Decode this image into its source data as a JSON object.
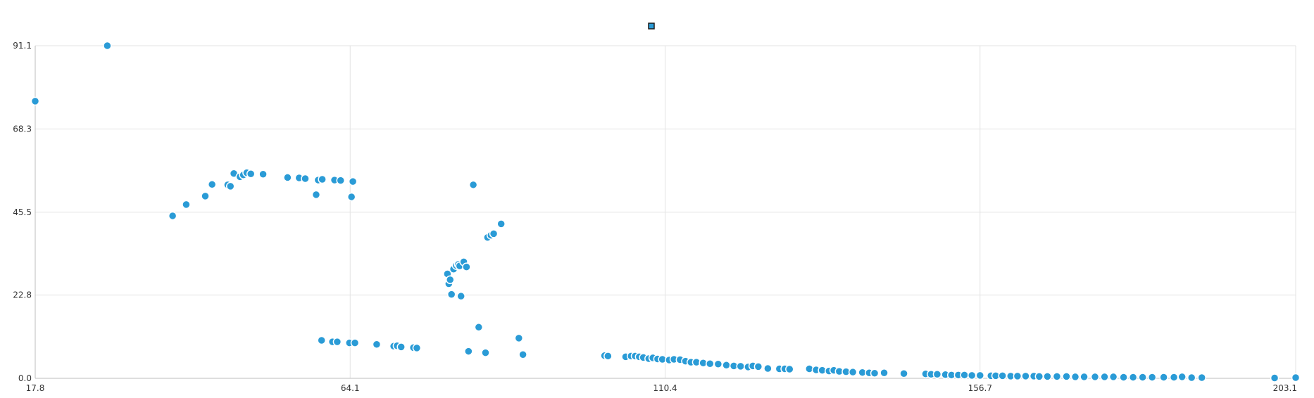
{
  "colors": {
    "series": "#2a9bd6",
    "legend_fill": "#2a9bd6",
    "legend_border": "#1a1a1a",
    "grid": "#e3e3e3",
    "tick_text": "#333333"
  },
  "legend": {
    "placement": "top-center",
    "icon": "square-marker-icon",
    "label": ""
  },
  "chart_data": {
    "type": "scatter",
    "title": "",
    "xlabel": "",
    "ylabel": "",
    "xlim": [
      17.8,
      203.1
    ],
    "ylim": [
      0.0,
      91.1
    ],
    "x_ticks": [
      "17.8",
      "64.1",
      "110.4",
      "156.7",
      "203.1"
    ],
    "y_ticks": [
      "0.0",
      "22.8",
      "45.5",
      "68.3",
      "91.1"
    ],
    "grid": true,
    "series": [
      {
        "name": "",
        "points": [
          [
            17.8,
            75.9
          ],
          [
            28.4,
            91.1
          ],
          [
            38.0,
            44.5
          ],
          [
            40.0,
            47.6
          ],
          [
            42.8,
            49.9
          ],
          [
            43.8,
            53.1
          ],
          [
            46.1,
            53.0
          ],
          [
            46.5,
            52.6
          ],
          [
            47.0,
            56.1
          ],
          [
            47.9,
            55.2
          ],
          [
            48.4,
            55.7
          ],
          [
            48.9,
            56.3
          ],
          [
            49.5,
            56.0
          ],
          [
            51.3,
            55.9
          ],
          [
            54.9,
            55.0
          ],
          [
            56.6,
            54.9
          ],
          [
            57.5,
            54.7
          ],
          [
            59.1,
            50.3
          ],
          [
            59.4,
            54.3
          ],
          [
            60.0,
            54.5
          ],
          [
            61.8,
            54.3
          ],
          [
            62.7,
            54.2
          ],
          [
            64.3,
            49.7
          ],
          [
            64.5,
            53.9
          ],
          [
            59.9,
            10.4
          ],
          [
            61.5,
            10.0
          ],
          [
            62.2,
            10.0
          ],
          [
            64.0,
            9.7
          ],
          [
            64.8,
            9.7
          ],
          [
            68.0,
            9.3
          ],
          [
            70.5,
            8.8
          ],
          [
            71.0,
            8.9
          ],
          [
            71.6,
            8.6
          ],
          [
            73.4,
            8.4
          ],
          [
            73.9,
            8.3
          ],
          [
            78.4,
            28.6
          ],
          [
            78.6,
            25.9
          ],
          [
            78.8,
            27.0
          ],
          [
            79.0,
            23.0
          ],
          [
            79.3,
            29.9
          ],
          [
            79.7,
            30.9
          ],
          [
            80.0,
            31.2
          ],
          [
            80.2,
            30.8
          ],
          [
            80.4,
            22.5
          ],
          [
            80.8,
            31.9
          ],
          [
            81.2,
            30.5
          ],
          [
            81.5,
            7.4
          ],
          [
            82.2,
            53.0
          ],
          [
            83.0,
            14.0
          ],
          [
            84.0,
            7.0
          ],
          [
            84.3,
            38.6
          ],
          [
            84.8,
            39.2
          ],
          [
            85.2,
            39.6
          ],
          [
            86.3,
            42.3
          ],
          [
            88.9,
            11.0
          ],
          [
            89.5,
            6.5
          ],
          [
            101.5,
            6.2
          ],
          [
            102.0,
            6.1
          ],
          [
            104.6,
            5.9
          ],
          [
            105.4,
            6.1
          ],
          [
            106.0,
            6.1
          ],
          [
            106.6,
            5.9
          ],
          [
            107.2,
            5.7
          ],
          [
            108.0,
            5.4
          ],
          [
            108.6,
            5.6
          ],
          [
            109.3,
            5.3
          ],
          [
            110.0,
            5.2
          ],
          [
            111.0,
            5.0
          ],
          [
            111.7,
            5.2
          ],
          [
            112.6,
            5.1
          ],
          [
            113.4,
            4.7
          ],
          [
            114.2,
            4.4
          ],
          [
            115.0,
            4.4
          ],
          [
            116.0,
            4.2
          ],
          [
            117.0,
            4.0
          ],
          [
            118.2,
            3.9
          ],
          [
            119.4,
            3.6
          ],
          [
            120.5,
            3.4
          ],
          [
            121.5,
            3.3
          ],
          [
            122.6,
            3.1
          ],
          [
            123.3,
            3.4
          ],
          [
            124.1,
            3.2
          ],
          [
            125.5,
            2.7
          ],
          [
            127.2,
            2.6
          ],
          [
            128.0,
            2.6
          ],
          [
            128.7,
            2.5
          ],
          [
            131.6,
            2.6
          ],
          [
            132.6,
            2.3
          ],
          [
            133.5,
            2.2
          ],
          [
            134.5,
            2.0
          ],
          [
            135.2,
            2.2
          ],
          [
            136.0,
            1.9
          ],
          [
            137.0,
            1.8
          ],
          [
            138.0,
            1.7
          ],
          [
            139.4,
            1.6
          ],
          [
            140.4,
            1.5
          ],
          [
            141.2,
            1.4
          ],
          [
            142.6,
            1.5
          ],
          [
            145.5,
            1.3
          ],
          [
            148.7,
            1.2
          ],
          [
            149.5,
            1.1
          ],
          [
            150.4,
            1.1
          ],
          [
            151.6,
            1.0
          ],
          [
            152.5,
            0.9
          ],
          [
            153.5,
            0.9
          ],
          [
            154.4,
            0.9
          ],
          [
            155.5,
            0.8
          ],
          [
            156.7,
            0.8
          ],
          [
            158.3,
            0.7
          ],
          [
            159.0,
            0.7
          ],
          [
            160.0,
            0.7
          ],
          [
            161.2,
            0.6
          ],
          [
            162.2,
            0.6
          ],
          [
            163.4,
            0.6
          ],
          [
            164.6,
            0.6
          ],
          [
            165.4,
            0.5
          ],
          [
            166.6,
            0.5
          ],
          [
            168.0,
            0.5
          ],
          [
            169.4,
            0.5
          ],
          [
            170.7,
            0.4
          ],
          [
            172.0,
            0.4
          ],
          [
            173.6,
            0.4
          ],
          [
            175.0,
            0.4
          ],
          [
            176.3,
            0.4
          ],
          [
            177.8,
            0.3
          ],
          [
            179.2,
            0.3
          ],
          [
            180.6,
            0.3
          ],
          [
            182.0,
            0.3
          ],
          [
            183.7,
            0.3
          ],
          [
            185.2,
            0.3
          ],
          [
            186.4,
            0.4
          ],
          [
            187.8,
            0.2
          ],
          [
            189.3,
            0.2
          ],
          [
            200.0,
            0.1
          ],
          [
            203.1,
            0.2
          ]
        ]
      }
    ]
  }
}
